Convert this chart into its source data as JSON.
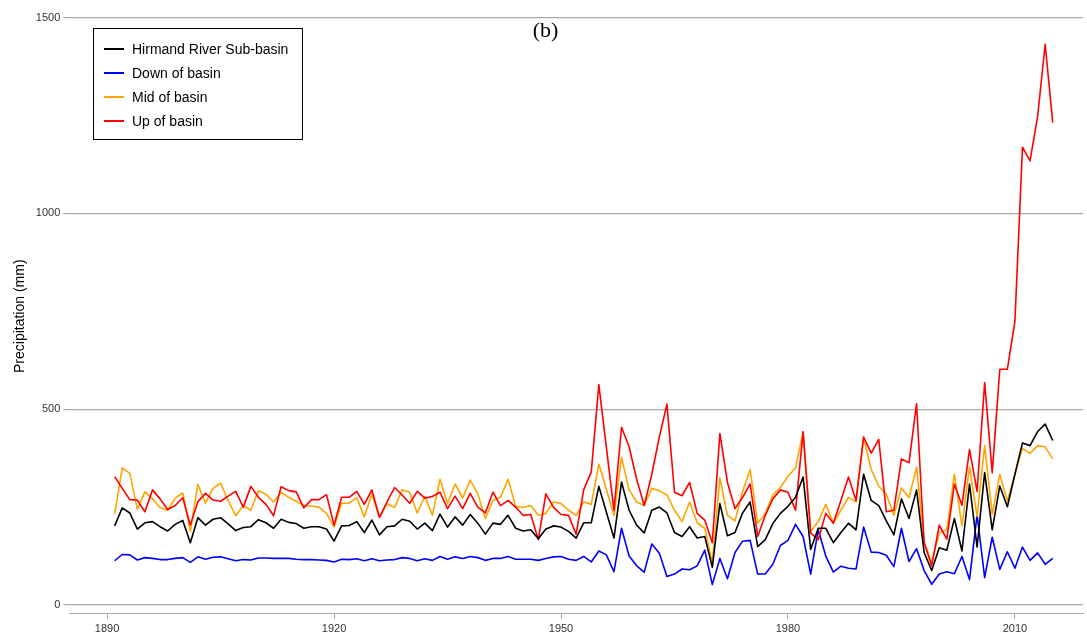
{
  "chart_data": {
    "type": "line",
    "title": "(b)",
    "ylabel": "Precipitation (mm)",
    "x": [
      1891,
      1892,
      1893,
      1894,
      1895,
      1896,
      1897,
      1898,
      1899,
      1900,
      1901,
      1902,
      1903,
      1904,
      1905,
      1906,
      1907,
      1908,
      1909,
      1910,
      1911,
      1912,
      1913,
      1914,
      1915,
      1916,
      1917,
      1918,
      1919,
      1920,
      1921,
      1922,
      1923,
      1924,
      1925,
      1926,
      1927,
      1928,
      1929,
      1930,
      1931,
      1932,
      1933,
      1934,
      1935,
      1936,
      1937,
      1938,
      1939,
      1940,
      1941,
      1942,
      1943,
      1944,
      1945,
      1946,
      1947,
      1948,
      1949,
      1950,
      1951,
      1952,
      1953,
      1954,
      1955,
      1956,
      1957,
      1958,
      1959,
      1960,
      1961,
      1962,
      1963,
      1964,
      1965,
      1966,
      1967,
      1968,
      1969,
      1970,
      1971,
      1972,
      1973,
      1974,
      1975,
      1976,
      1977,
      1978,
      1979,
      1980,
      1981,
      1982,
      1983,
      1984,
      1985,
      1986,
      1987,
      1988,
      1989,
      1990,
      1991,
      1992,
      1993,
      1994,
      1995,
      1996,
      1997,
      1998,
      1999,
      2000,
      2001,
      2002,
      2003,
      2004,
      2005,
      2006,
      2007,
      2008,
      2009,
      2010,
      2011,
      2012,
      2013,
      2014,
      2015
    ],
    "series": [
      {
        "name": "Hirmand River Sub-basin",
        "color": "#000000",
        "values": [
          202,
          248,
          235,
          194,
          210,
          213,
          200,
          189,
          206,
          216,
          159,
          223,
          204,
          219,
          223,
          207,
          190,
          198,
          200,
          218,
          210,
          196,
          219,
          211,
          208,
          196,
          200,
          200,
          194,
          163,
          202,
          203,
          213,
          185,
          217,
          179,
          200,
          202,
          219,
          214,
          194,
          209,
          190,
          232,
          199,
          225,
          204,
          231,
          209,
          181,
          209,
          206,
          229,
          196,
          189,
          192,
          169,
          194,
          202,
          199,
          188,
          171,
          210,
          210,
          303,
          237,
          171,
          314,
          242,
          204,
          184,
          242,
          250,
          235,
          185,
          175,
          200,
          171,
          175,
          96,
          259,
          177,
          185,
          235,
          263,
          149,
          167,
          208,
          234,
          252,
          275,
          327,
          142,
          196,
          196,
          159,
          185,
          209,
          192,
          334,
          267,
          254,
          215,
          179,
          271,
          221,
          294,
          134,
          88,
          146,
          140,
          221,
          138,
          309,
          148,
          338,
          192,
          304,
          251,
          334,
          414,
          407,
          443,
          462,
          420
        ]
      },
      {
        "name": "Down of basin",
        "color": "#0000ff",
        "values": [
          113,
          129,
          128,
          115,
          121,
          119,
          116,
          116,
          119,
          121,
          109,
          123,
          117,
          122,
          123,
          118,
          113,
          116,
          115,
          120,
          120,
          119,
          119,
          119,
          117,
          116,
          116,
          115,
          114,
          110,
          117,
          116,
          118,
          113,
          118,
          113,
          115,
          116,
          121,
          119,
          113,
          118,
          114,
          124,
          117,
          123,
          119,
          124,
          121,
          114,
          119,
          119,
          124,
          117,
          117,
          117,
          114,
          119,
          123,
          124,
          117,
          114,
          124,
          110,
          138,
          128,
          85,
          196,
          125,
          100,
          84,
          156,
          132,
          73,
          79,
          92,
          90,
          100,
          140,
          52,
          119,
          67,
          134,
          163,
          165,
          79,
          79,
          104,
          152,
          165,
          206,
          175,
          79,
          192,
          125,
          84,
          99,
          94,
          92,
          199,
          135,
          134,
          127,
          98,
          196,
          111,
          144,
          88,
          53,
          79,
          85,
          80,
          124,
          65,
          231,
          70,
          173,
          91,
          136,
          94,
          148,
          114,
          133,
          104,
          119
        ]
      },
      {
        "name": "Mid of basin",
        "color": "#ffa500",
        "values": [
          232,
          350,
          336,
          244,
          289,
          271,
          249,
          242,
          273,
          286,
          188,
          308,
          260,
          298,
          311,
          267,
          228,
          254,
          242,
          292,
          283,
          263,
          288,
          275,
          265,
          254,
          253,
          250,
          234,
          199,
          260,
          260,
          274,
          225,
          283,
          224,
          259,
          249,
          294,
          288,
          235,
          277,
          229,
          321,
          259,
          309,
          273,
          319,
          284,
          221,
          267,
          275,
          321,
          252,
          249,
          254,
          229,
          234,
          263,
          259,
          242,
          229,
          263,
          257,
          360,
          295,
          229,
          377,
          294,
          263,
          254,
          298,
          292,
          281,
          242,
          213,
          263,
          210,
          196,
          109,
          324,
          229,
          215,
          290,
          346,
          209,
          234,
          281,
          300,
          329,
          350,
          442,
          188,
          213,
          257,
          209,
          242,
          275,
          263,
          429,
          346,
          304,
          283,
          229,
          299,
          274,
          352,
          159,
          109,
          184,
          192,
          334,
          202,
          353,
          226,
          407,
          231,
          334,
          265,
          334,
          400,
          387,
          407,
          404,
          373
        ]
      },
      {
        "name": "Up of basin",
        "color": "#ff0000",
        "values": [
          328,
          298,
          269,
          268,
          238,
          294,
          271,
          244,
          254,
          274,
          204,
          264,
          285,
          268,
          265,
          278,
          290,
          250,
          303,
          275,
          257,
          228,
          302,
          292,
          289,
          248,
          269,
          269,
          282,
          204,
          275,
          275,
          290,
          257,
          294,
          224,
          263,
          300,
          281,
          260,
          290,
          273,
          277,
          288,
          246,
          278,
          246,
          285,
          250,
          235,
          288,
          254,
          267,
          250,
          229,
          231,
          167,
          284,
          250,
          231,
          229,
          181,
          294,
          340,
          563,
          402,
          242,
          454,
          404,
          321,
          254,
          334,
          429,
          513,
          288,
          279,
          313,
          234,
          217,
          159,
          438,
          313,
          246,
          275,
          309,
          175,
          229,
          271,
          294,
          288,
          242,
          442,
          184,
          167,
          234,
          209,
          267,
          327,
          267,
          429,
          388,
          423,
          238,
          242,
          373,
          363,
          514,
          159,
          100,
          204,
          168,
          309,
          255,
          397,
          290,
          568,
          338,
          602,
          602,
          724,
          1169,
          1134,
          1247,
          1432,
          1232
        ]
      }
    ],
    "xlim": [
      1885,
      2019
    ],
    "xticks": [
      1890,
      1920,
      1950,
      1980,
      2010
    ],
    "ylim": [
      -25,
      1500
    ],
    "yticks": [
      0,
      500,
      1000,
      1500
    ],
    "grid": "y",
    "legend": "top left"
  }
}
